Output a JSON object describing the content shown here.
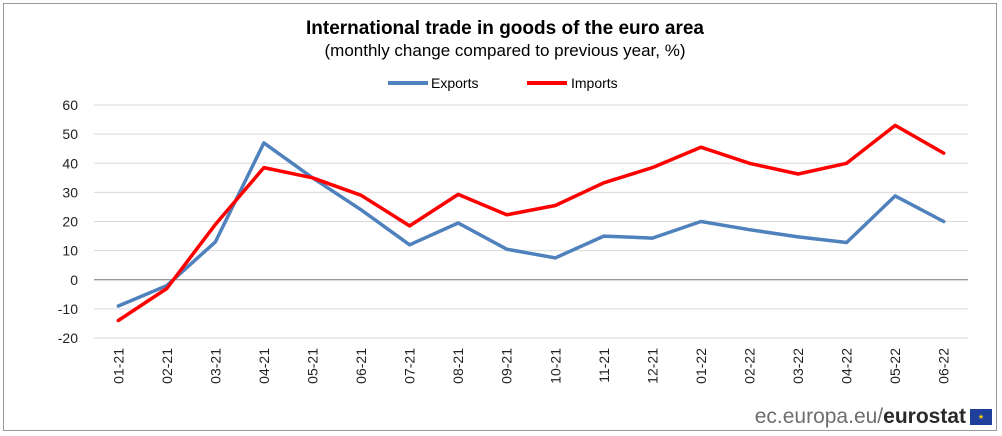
{
  "chart_data": {
    "type": "line",
    "title": "International trade in goods of the euro area",
    "subtitle": "(monthly change compared to previous year, %)",
    "categories": [
      "01-21",
      "02-21",
      "03-21",
      "04-21",
      "05-21",
      "06-21",
      "07-21",
      "08-21",
      "09-21",
      "10-21",
      "11-21",
      "12-21",
      "01-22",
      "02-22",
      "03-22",
      "04-22",
      "05-22",
      "06-22"
    ],
    "series": [
      {
        "name": "Exports",
        "color": "#4f81bd",
        "values": [
          -9,
          -2,
          13,
          47,
          35,
          24,
          12,
          19.5,
          10.5,
          7.5,
          15,
          14.3,
          20,
          17.2,
          14.7,
          12.8,
          28.8,
          20
        ]
      },
      {
        "name": "Imports",
        "color": "#ff0000",
        "values": [
          -14,
          -3,
          19,
          38.5,
          35,
          29,
          18.5,
          29.3,
          22.3,
          25.5,
          33.3,
          38.5,
          45.5,
          40,
          36.3,
          40,
          53,
          43.5
        ]
      }
    ],
    "ylim": [
      -20,
      60
    ],
    "yticks": [
      -20,
      -10,
      0,
      10,
      20,
      30,
      40,
      50,
      60
    ],
    "grid": true,
    "legend_position": "top-center"
  },
  "footer": {
    "site": "ec.europa.eu/",
    "brand": "eurostat",
    "flag_icon": "eu-flag-icon"
  }
}
